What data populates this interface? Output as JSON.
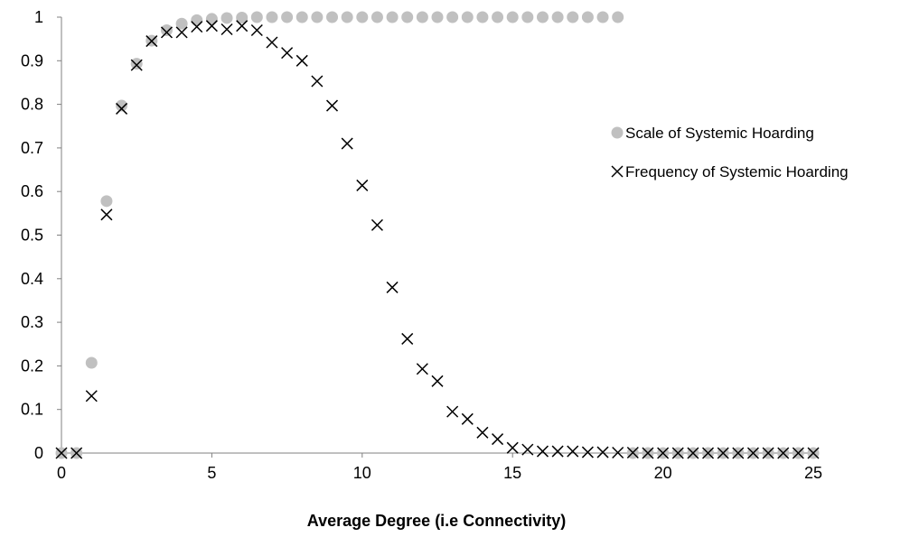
{
  "chart_data": {
    "type": "scatter",
    "title": "",
    "xlabel": "Average Degree (i.e Connectivity)",
    "ylabel": "",
    "xlim": [
      0,
      25
    ],
    "ylim": [
      0,
      1
    ],
    "xticks": [
      "0",
      "5",
      "10",
      "15",
      "20",
      "25"
    ],
    "yticks": [
      "0",
      "0.1",
      "0.2",
      "0.3",
      "0.4",
      "0.5",
      "0.6",
      "0.7",
      "0.8",
      "0.9",
      "1"
    ],
    "grid": false,
    "legend_position": "right",
    "series": [
      {
        "name": "Scale of Systemic Hoarding",
        "marker": "circle",
        "color": "#c0c0c0",
        "x": [
          0,
          0.5,
          1,
          1.5,
          2,
          2.5,
          3,
          3.5,
          4,
          4.5,
          5,
          5.5,
          6,
          6.5,
          7,
          7.5,
          8,
          8.5,
          9,
          9.5,
          10,
          10.5,
          11,
          11.5,
          12,
          12.5,
          13,
          13.5,
          14,
          14.5,
          15,
          15.5,
          16,
          16.5,
          17,
          17.5,
          18,
          18.5,
          19,
          19.5,
          20,
          20.5,
          21,
          21.5,
          22,
          22.5,
          23,
          23.5,
          24,
          24.5,
          25
        ],
        "y": [
          0,
          0,
          0.207,
          0.578,
          0.797,
          0.893,
          0.946,
          0.97,
          0.985,
          0.993,
          0.996,
          0.998,
          0.999,
          1,
          1,
          1,
          1,
          1,
          1,
          1,
          1,
          1,
          1,
          1,
          1,
          1,
          1,
          1,
          1,
          1,
          1,
          1,
          1,
          1,
          1,
          1,
          1,
          1,
          0,
          0,
          0,
          0,
          0,
          0,
          0,
          0,
          0,
          0,
          0,
          0,
          0
        ]
      },
      {
        "name": "Frequency of Systemic Hoarding",
        "marker": "x",
        "color": "#000000",
        "x": [
          0,
          0.5,
          1,
          1.5,
          2,
          2.5,
          3,
          3.5,
          4,
          4.5,
          5,
          5.5,
          6,
          6.5,
          7,
          7.5,
          8,
          8.5,
          9,
          9.5,
          10,
          10.5,
          11,
          11.5,
          12,
          12.5,
          13,
          13.5,
          14,
          14.5,
          15,
          15.5,
          16,
          16.5,
          17,
          17.5,
          18,
          18.5,
          19,
          19.5,
          20,
          20.5,
          21,
          21.5,
          22,
          22.5,
          23,
          23.5,
          24,
          24.5,
          25
        ],
        "y": [
          0,
          0,
          0.131,
          0.547,
          0.79,
          0.89,
          0.945,
          0.965,
          0.965,
          0.978,
          0.98,
          0.972,
          0.98,
          0.97,
          0.942,
          0.918,
          0.9,
          0.853,
          0.797,
          0.71,
          0.614,
          0.523,
          0.38,
          0.262,
          0.193,
          0.165,
          0.095,
          0.078,
          0.047,
          0.032,
          0.012,
          0.008,
          0.004,
          0.004,
          0.004,
          0.002,
          0.002,
          0.001,
          0.001,
          0,
          0,
          0,
          0,
          0,
          0,
          0,
          0,
          0,
          0,
          0,
          0
        ]
      }
    ]
  }
}
